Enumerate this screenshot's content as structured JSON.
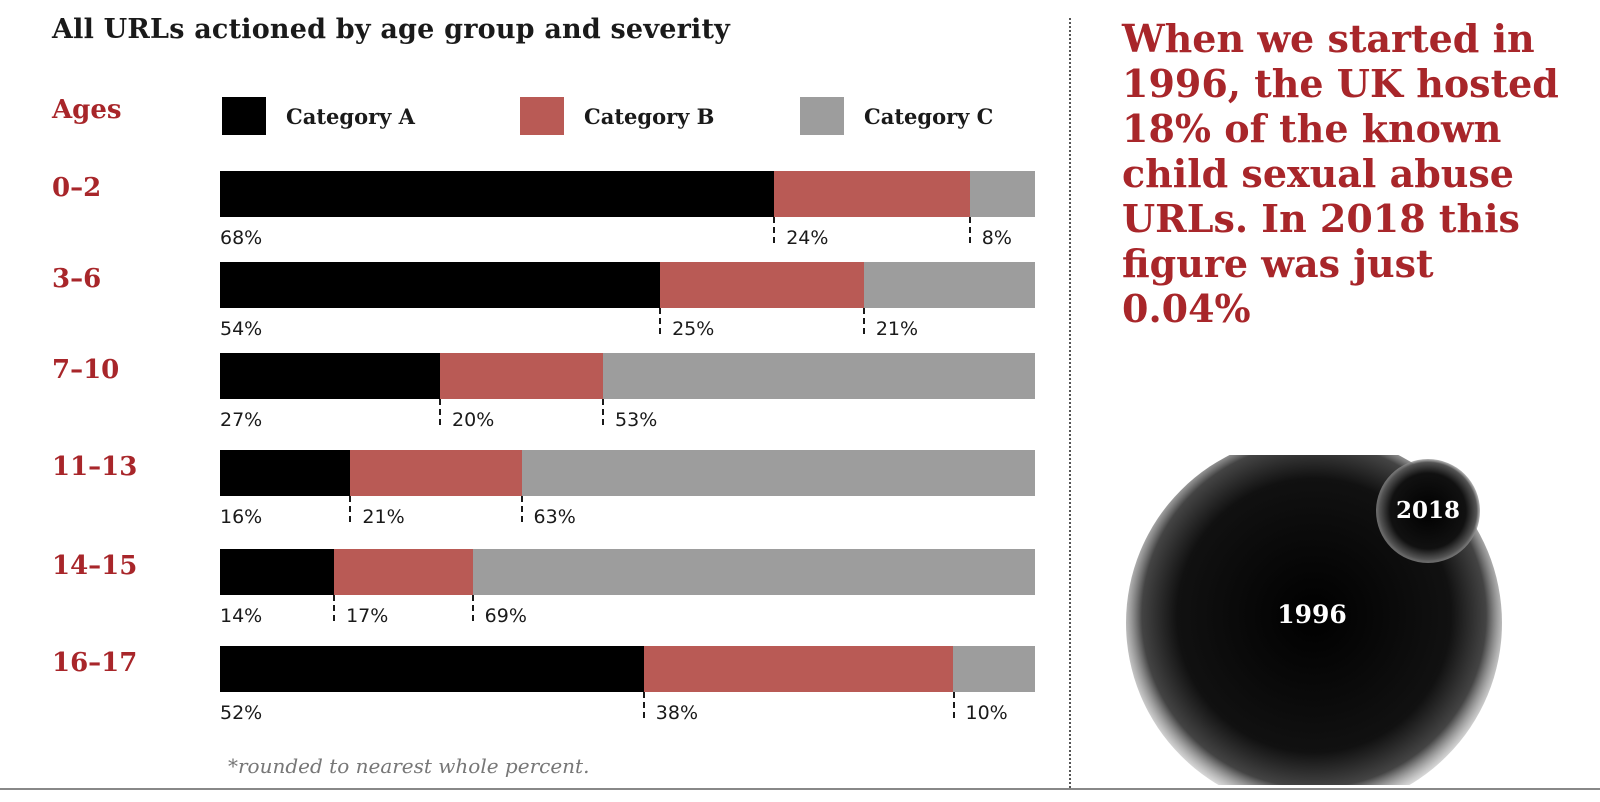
{
  "chart_data": {
    "type": "bar",
    "stacked": true,
    "orientation": "horizontal",
    "title": "All URLs actioned by age group and severity",
    "category_axis_title": "Ages",
    "categories": [
      "0–2",
      "3–6",
      "7–10",
      "11–13",
      "14–15",
      "16–17"
    ],
    "series": [
      {
        "name": "Category A",
        "color": "#000000",
        "values": [
          68,
          54,
          27,
          16,
          14,
          52
        ]
      },
      {
        "name": "Category B",
        "color": "#b95a55",
        "values": [
          24,
          25,
          20,
          21,
          17,
          38
        ]
      },
      {
        "name": "Category C",
        "color": "#9d9d9d",
        "values": [
          8,
          21,
          53,
          63,
          69,
          10
        ]
      }
    ],
    "value_suffix": "%",
    "legend": "top",
    "footnote": "*rounded to nearest whole percent."
  },
  "callout": {
    "text": "When we started in 1996, the UK hosted 18% of the known child sexual abuse URLs. In 2018 this figure was just 0.04%"
  },
  "bubbles": {
    "large_label": "1996",
    "small_label": "2018"
  }
}
